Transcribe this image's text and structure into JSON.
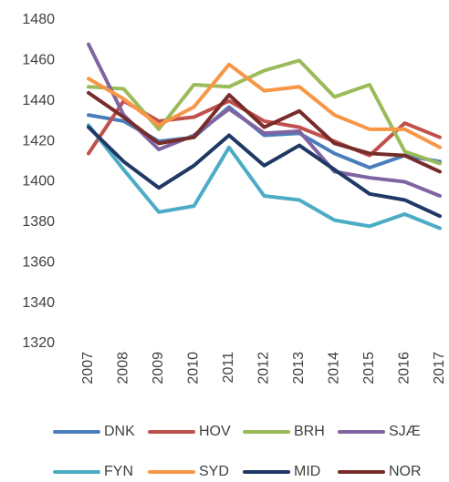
{
  "chart_data": {
    "type": "line",
    "categories": [
      "2007",
      "2008",
      "2009",
      "2010",
      "2011",
      "2012",
      "2013",
      "2014",
      "2015",
      "2016",
      "2017"
    ],
    "ylim": [
      1320,
      1480
    ],
    "yticks": [
      1320,
      1340,
      1360,
      1380,
      1400,
      1420,
      1440,
      1460,
      1480
    ],
    "grid": false,
    "legend": "bottom",
    "series": [
      {
        "name": "DNK",
        "color": "#4a7ebb",
        "values": [
          1433,
          1430,
          1420,
          1422,
          1437,
          1423,
          1424,
          1414,
          1407,
          1413,
          1410
        ]
      },
      {
        "name": "HOV",
        "color": "#c0504d",
        "values": [
          1414,
          1440,
          1430,
          1432,
          1440,
          1430,
          1427,
          1420,
          1413,
          1429,
          1422
        ]
      },
      {
        "name": "BRH",
        "color": "#9bbb59",
        "values": [
          1447,
          1446,
          1426,
          1448,
          1447,
          1455,
          1460,
          1442,
          1448,
          1415,
          1409
        ]
      },
      {
        "name": "SJÆ",
        "color": "#8064a2",
        "values": [
          1468,
          1433,
          1416,
          1423,
          1436,
          1424,
          1425,
          1405,
          1402,
          1400,
          1393
        ]
      },
      {
        "name": "FYN",
        "color": "#4bacc6",
        "values": [
          1428,
          1406,
          1385,
          1388,
          1417,
          1393,
          1391,
          1381,
          1378,
          1384,
          1377
        ]
      },
      {
        "name": "SYD",
        "color": "#f79646",
        "values": [
          1451,
          1441,
          1428,
          1437,
          1458,
          1445,
          1447,
          1433,
          1426,
          1426,
          1417
        ]
      },
      {
        "name": "MID",
        "color": "#1f3864",
        "values": [
          1427,
          1410,
          1397,
          1408,
          1423,
          1408,
          1418,
          1406,
          1394,
          1391,
          1383
        ]
      },
      {
        "name": "NOR",
        "color": "#772c2a",
        "values": [
          1444,
          1432,
          1419,
          1422,
          1443,
          1427,
          1435,
          1419,
          1414,
          1413,
          1405
        ]
      }
    ]
  }
}
